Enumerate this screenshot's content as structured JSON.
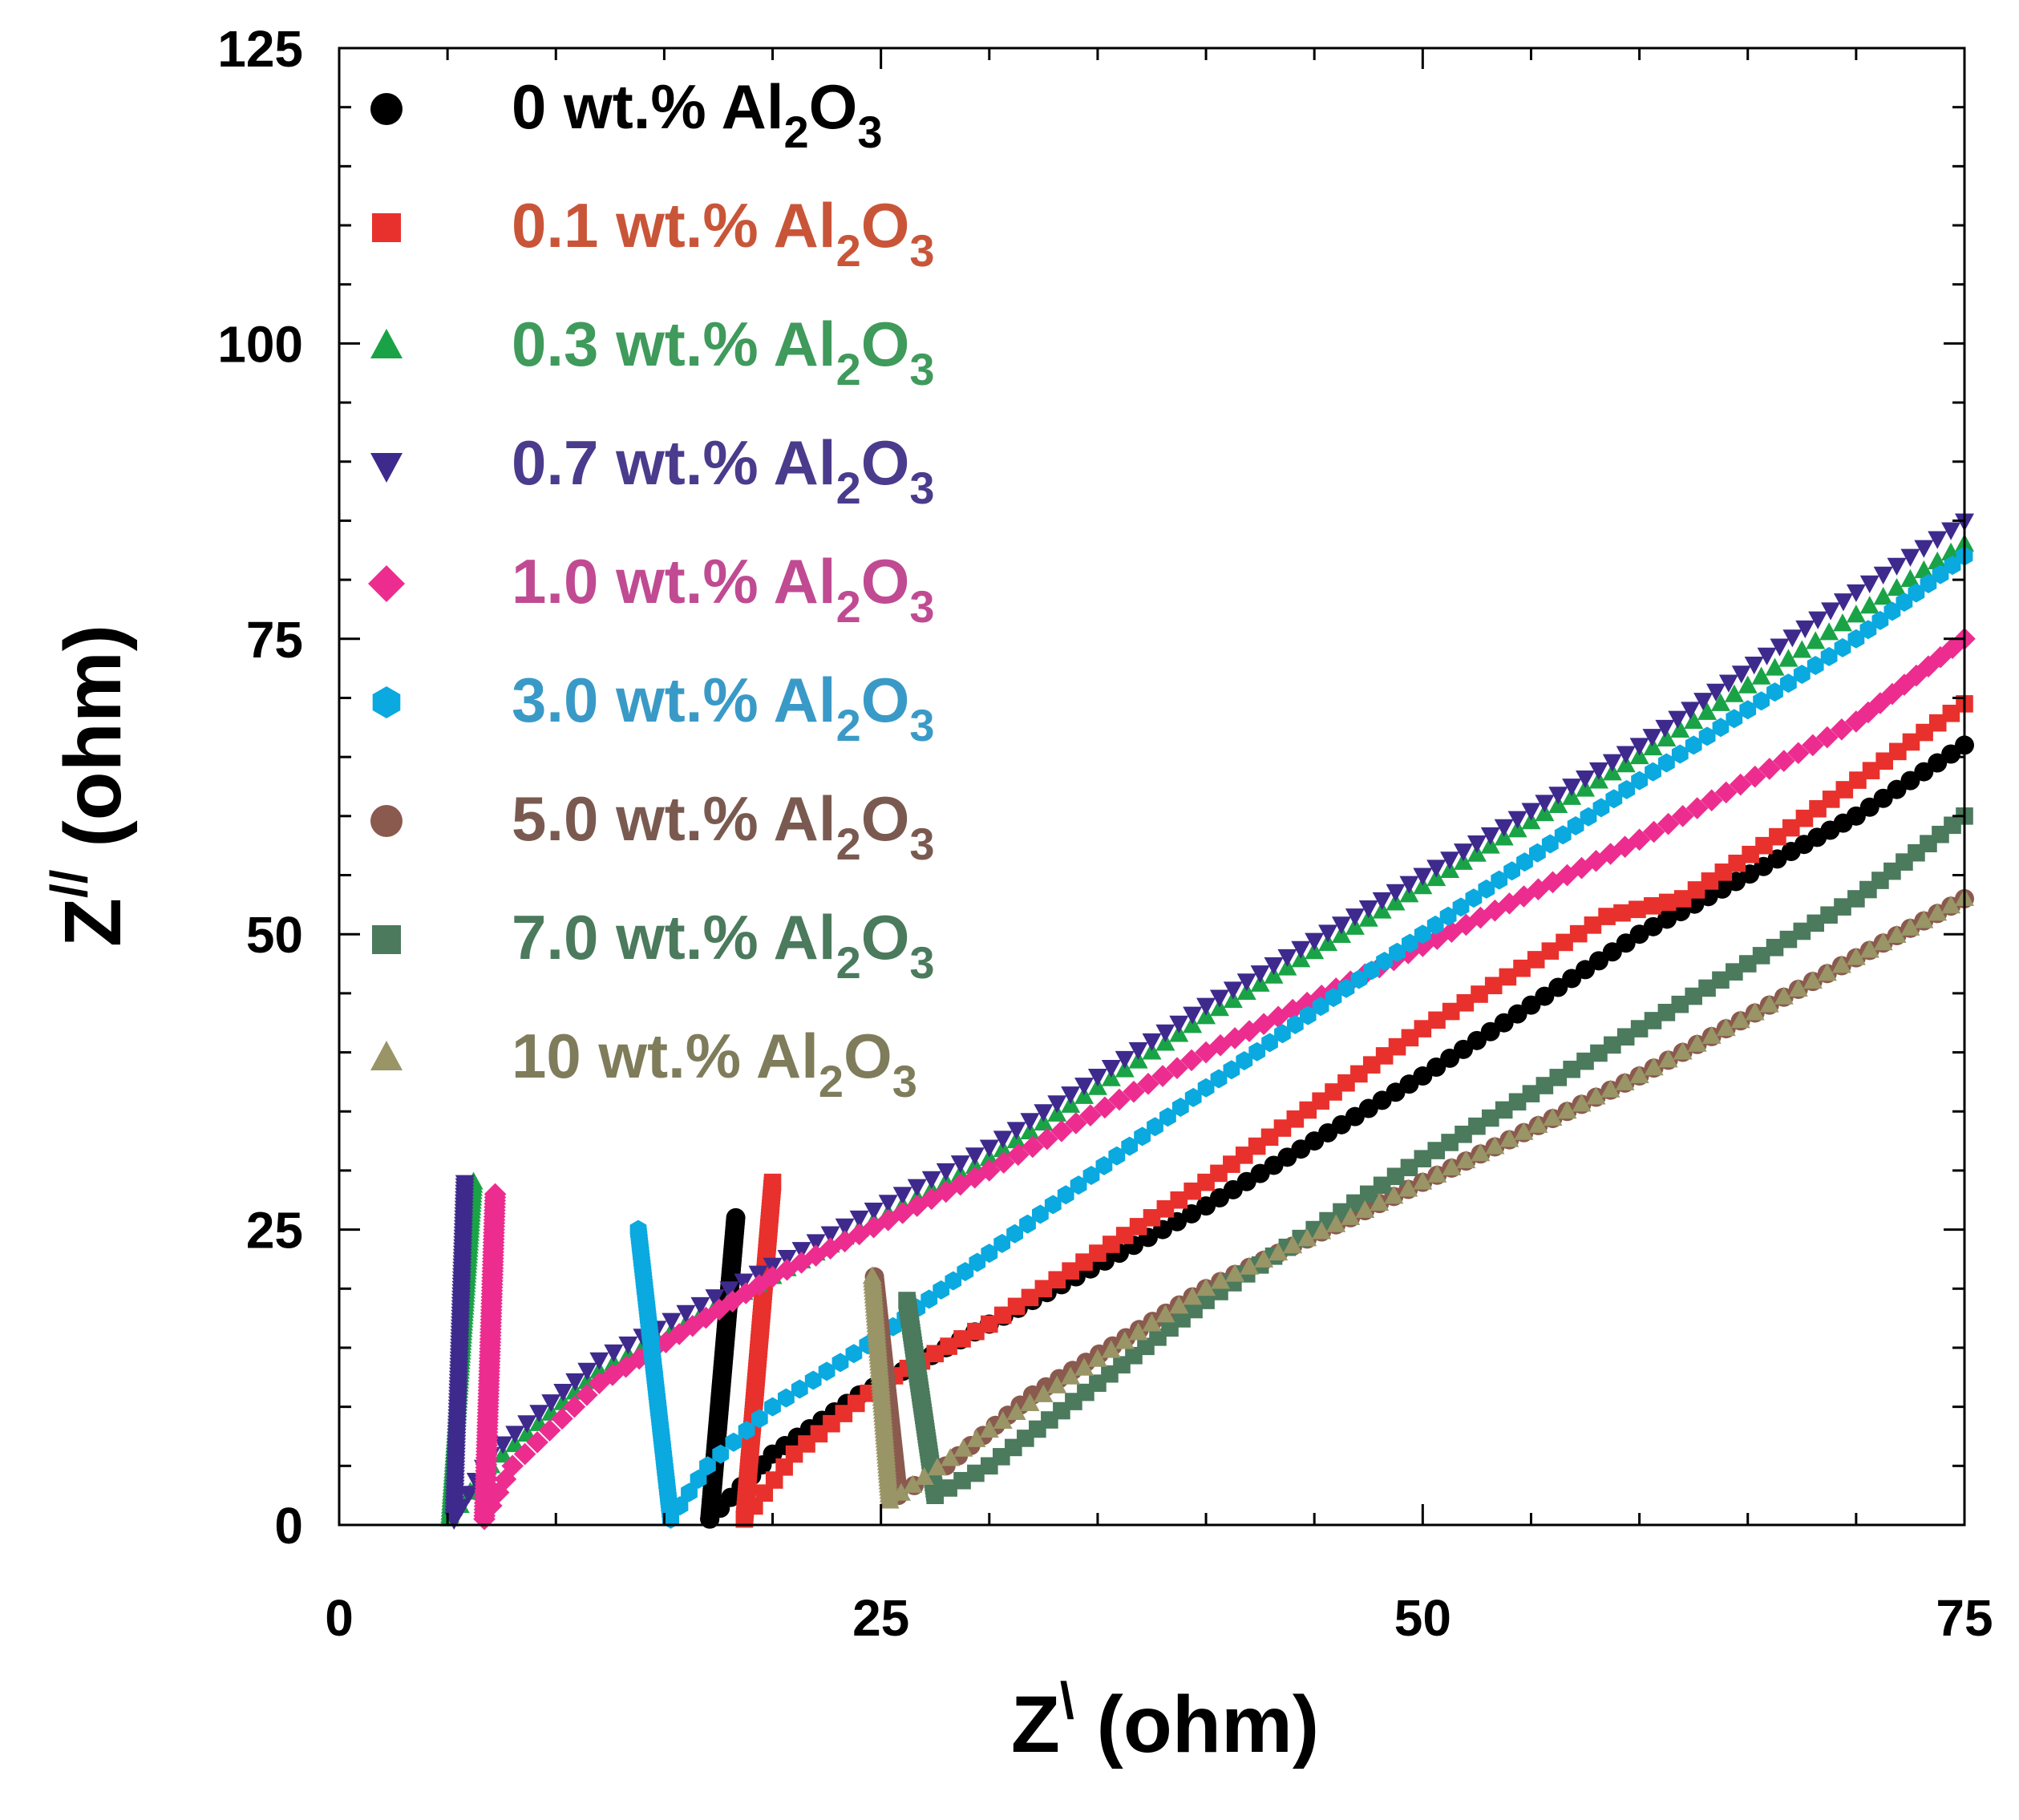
{
  "chart_data": {
    "type": "scatter",
    "xlabel": {
      "main": "Z",
      "sup": "\\",
      "unit": " (ohm)"
    },
    "ylabel": {
      "main": "Z",
      "sup": "//",
      "unit": " (ohm)"
    },
    "xlim": [
      0,
      75
    ],
    "ylim": [
      0,
      125
    ],
    "xticks": [
      "0",
      "25",
      "50",
      "75"
    ],
    "yticks": [
      "0",
      "25",
      "50",
      "75",
      "100",
      "125"
    ],
    "grid": false,
    "legend": "top-left",
    "series": [
      {
        "name": "0 wt.% Al2O3",
        "label": {
          "pre": "0 wt.% Al",
          "sub1": "2",
          "mid": "O",
          "sub2": "3"
        },
        "color": "#000000",
        "marker": "circle",
        "text_color": "#000000",
        "spike": [
          [
            17.1,
            0.5
          ],
          [
            18.3,
            26
          ]
        ],
        "arc": [
          [
            17.1,
            0.5
          ],
          [
            20,
            6
          ],
          [
            24,
            11
          ],
          [
            30,
            17
          ],
          [
            40,
            27
          ],
          [
            50,
            38
          ],
          [
            60,
            50
          ],
          [
            67,
            57
          ],
          [
            70,
            60
          ],
          [
            75,
            66
          ]
        ]
      },
      {
        "name": "0.1 wt.% Al2O3",
        "label": {
          "pre": "0.1 wt.% Al",
          "sub1": "2",
          "mid": "O",
          "sub2": "3"
        },
        "color": "#e8312c",
        "marker": "square",
        "text_color": "#c95539",
        "spike": [
          [
            18.7,
            0.5
          ],
          [
            20,
            29
          ]
        ],
        "arc": [
          [
            18.7,
            0.5
          ],
          [
            21,
            6
          ],
          [
            25,
            12
          ],
          [
            30,
            17
          ],
          [
            40,
            29
          ],
          [
            50,
            42
          ],
          [
            58.5,
            51.5
          ],
          [
            62,
            53
          ],
          [
            67,
            59
          ],
          [
            75,
            69.5
          ]
        ]
      },
      {
        "name": "0.3 wt.% Al2O3",
        "label": {
          "pre": "0.3 wt.% Al",
          "sub1": "2",
          "mid": "O",
          "sub2": "3"
        },
        "color": "#1aa346",
        "marker": "triangle-up",
        "text_color": "#3f9a5c",
        "spike": [
          [
            5.1,
            0.5
          ],
          [
            6.2,
            29
          ]
        ],
        "arc": [
          [
            5.1,
            0.5
          ],
          [
            7,
            5
          ],
          [
            12,
            13
          ],
          [
            20,
            21
          ],
          [
            30,
            31
          ],
          [
            40,
            43
          ],
          [
            50,
            54
          ],
          [
            60,
            65
          ],
          [
            70,
            77
          ],
          [
            75,
            83
          ]
        ]
      },
      {
        "name": "0.7 wt.% Al2O3",
        "label": {
          "pre": "0.7 wt.% Al",
          "sub1": "2",
          "mid": "O",
          "sub2": "3"
        },
        "color": "#3e2a8d",
        "marker": "triangle-down",
        "text_color": "#4b3b8c",
        "spike": [
          [
            5.3,
            0.5
          ],
          [
            5.8,
            29
          ]
        ],
        "arc": [
          [
            5.3,
            0.5
          ],
          [
            7,
            6
          ],
          [
            12,
            14
          ],
          [
            20,
            22
          ],
          [
            30,
            32
          ],
          [
            40,
            44
          ],
          [
            50,
            55
          ],
          [
            60,
            66
          ],
          [
            70,
            79
          ],
          [
            75,
            85
          ]
        ]
      },
      {
        "name": "1.0 wt.% Al2O3",
        "label": {
          "pre": "1.0 wt.% Al",
          "sub1": "2",
          "mid": "O",
          "sub2": "3"
        },
        "color": "#ec2d8f",
        "marker": "diamond",
        "text_color": "#c04b92",
        "spike": [
          [
            6.7,
            0.5
          ],
          [
            7.2,
            28
          ]
        ],
        "arc": [
          [
            6.7,
            0.5
          ],
          [
            8,
            5
          ],
          [
            12,
            12
          ],
          [
            20,
            21
          ],
          [
            30,
            30
          ],
          [
            40,
            40
          ],
          [
            50,
            49
          ],
          [
            60,
            58
          ],
          [
            70,
            68
          ],
          [
            75,
            75
          ]
        ]
      },
      {
        "name": "3.0 wt.% Al2O3",
        "label": {
          "pre": "3.0 wt.% Al",
          "sub1": "2",
          "mid": "O",
          "sub2": "3"
        },
        "color": "#0aa9e0",
        "marker": "hexagon",
        "text_color": "#3a9ac7",
        "spike": [
          [
            15.3,
            0.5
          ],
          [
            13.8,
            25
          ]
        ],
        "arc": [
          [
            15.3,
            0.5
          ],
          [
            17,
            5
          ],
          [
            20,
            10
          ],
          [
            25,
            16
          ],
          [
            30,
            23
          ],
          [
            40,
            37
          ],
          [
            50,
            50
          ],
          [
            60,
            63
          ],
          [
            70,
            75
          ],
          [
            75,
            82
          ]
        ]
      },
      {
        "name": "5.0 wt.% Al2O3",
        "label": {
          "pre": "5.0 wt.% Al",
          "sub1": "2",
          "mid": "O",
          "sub2": "3"
        },
        "color": "#8a5a4e",
        "marker": "circle",
        "text_color": "#7a5a50",
        "spike": [
          [
            25.8,
            2.5
          ],
          [
            24.7,
            21
          ]
        ],
        "arc": [
          [
            25.8,
            2.5
          ],
          [
            28,
            5
          ],
          [
            32,
            11
          ],
          [
            40,
            20
          ],
          [
            50,
            29
          ],
          [
            60,
            38
          ],
          [
            70,
            48
          ],
          [
            75,
            53
          ]
        ]
      },
      {
        "name": "7.0 wt.% Al2O3",
        "label": {
          "pre": "7.0 wt.% Al",
          "sub1": "2",
          "mid": "O",
          "sub2": "3"
        },
        "color": "#4b7a5d",
        "marker": "square",
        "text_color": "#4b7a5d",
        "spike": [
          [
            27.5,
            2.5
          ],
          [
            26.2,
            19
          ]
        ],
        "arc": [
          [
            27.5,
            2.5
          ],
          [
            30,
            5
          ],
          [
            35,
            12
          ],
          [
            40,
            19
          ],
          [
            50,
            31
          ],
          [
            60,
            42
          ],
          [
            70,
            53
          ],
          [
            75,
            60
          ]
        ]
      },
      {
        "name": "10 wt.% Al2O3",
        "label": {
          "pre": "10 wt.% Al",
          "sub1": "2",
          "mid": "O",
          "sub2": "3"
        },
        "color": "#999566",
        "marker": "triangle-up",
        "text_color": "#7f7c5b",
        "spike": [
          [
            25.4,
            2
          ],
          [
            24.6,
            21
          ]
        ],
        "arc": [
          [
            25.4,
            2
          ],
          [
            27,
            4
          ],
          [
            30,
            8
          ],
          [
            35,
            14
          ],
          [
            40,
            20
          ],
          [
            50,
            29
          ],
          [
            60,
            38
          ],
          [
            70,
            48
          ],
          [
            75,
            53
          ]
        ]
      }
    ]
  }
}
